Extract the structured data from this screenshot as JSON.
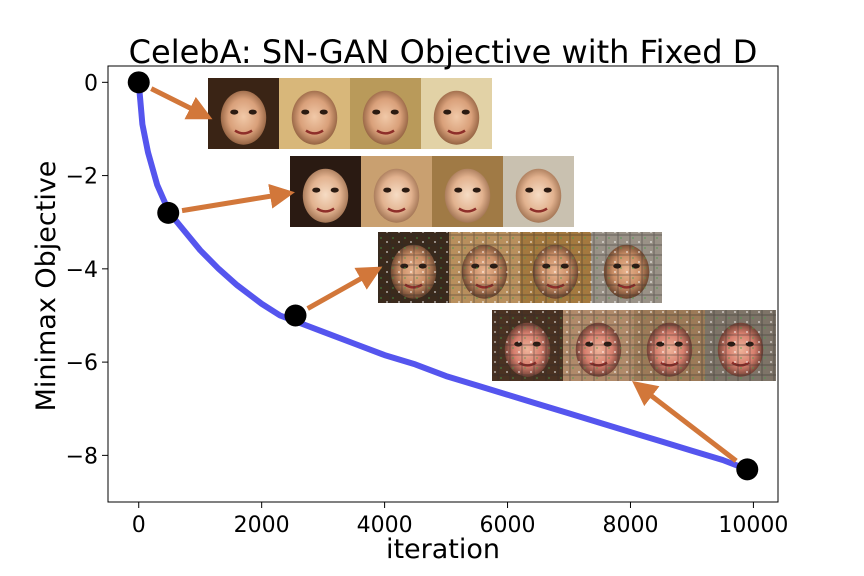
{
  "chart_data": {
    "type": "line",
    "title": "CelebA: SN-GAN Objective with Fixed D",
    "xlabel": "iteration",
    "ylabel": "Minimax Objective",
    "xlim": [
      -500,
      10400
    ],
    "ylim": [
      -9.0,
      0.35
    ],
    "xticks": [
      0,
      2000,
      4000,
      6000,
      8000,
      10000
    ],
    "xtick_labels": [
      "0",
      "2000",
      "4000",
      "6000",
      "8000",
      "10000"
    ],
    "yticks": [
      0,
      -2,
      -4,
      -6,
      -8
    ],
    "ytick_labels": [
      "0",
      "−2",
      "−4",
      "−6",
      "−8"
    ],
    "grid": false,
    "series": [
      {
        "color": "#5555ee",
        "x": [
          0,
          60,
          150,
          300,
          500,
          750,
          1000,
          1300,
          1600,
          2000,
          2300,
          2600,
          3000,
          3500,
          4000,
          4500,
          5000,
          5500,
          6000,
          6500,
          7000,
          7500,
          8000,
          8500,
          9000,
          9500,
          9900
        ],
        "y": [
          0,
          -0.9,
          -1.5,
          -2.2,
          -2.8,
          -3.2,
          -3.6,
          -4.0,
          -4.35,
          -4.75,
          -5.0,
          -5.15,
          -5.35,
          -5.6,
          -5.85,
          -6.05,
          -6.3,
          -6.5,
          -6.7,
          -6.9,
          -7.1,
          -7.3,
          -7.5,
          -7.7,
          -7.9,
          -8.1,
          -8.3
        ]
      }
    ],
    "markers": [
      {
        "x": 0,
        "y": 0,
        "color": "#000000"
      },
      {
        "x": 480,
        "y": -2.8,
        "color": "#000000"
      },
      {
        "x": 2550,
        "y": -5.0,
        "color": "#000000"
      },
      {
        "x": 9900,
        "y": -8.3,
        "color": "#000000"
      }
    ],
    "image_strips": [
      {
        "name": "faces-iter-0",
        "marker": 0,
        "count": 4
      },
      {
        "name": "faces-iter-480",
        "marker": 1,
        "count": 4
      },
      {
        "name": "faces-iter-2550",
        "marker": 2,
        "count": 4
      },
      {
        "name": "faces-iter-9900",
        "marker": 3,
        "count": 4
      }
    ],
    "arrow_color": "#d2773a"
  }
}
